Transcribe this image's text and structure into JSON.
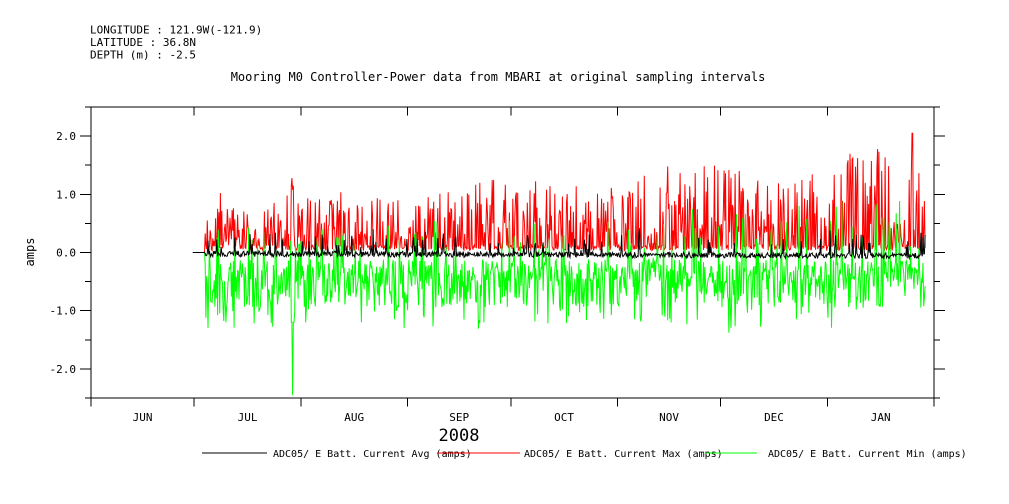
{
  "figure": {
    "header": {
      "longitude": "LONGITUDE : 121.9W(-121.9)",
      "latitude": "LATITUDE : 36.8N",
      "depth": "DEPTH (m) : -2.5"
    }
  },
  "chart_data": {
    "type": "line",
    "title": "Mooring M0 Controller-Power data from MBARI at original sampling intervals",
    "ylabel": "amps",
    "year_label": "2008",
    "background_color": "#ffffff",
    "axis_color": "#000000",
    "ylim": [
      -2.5,
      2.5
    ],
    "yticks": {
      "major": [
        {
          "value": 2.0,
          "label": "2.0"
        },
        {
          "value": 1.0,
          "label": "1.0"
        },
        {
          "value": 0.0,
          "label": "0.0"
        },
        {
          "value": -1.0,
          "label": "-1.0"
        },
        {
          "value": -2.0,
          "label": "-2.0"
        }
      ],
      "minor": [
        2.5,
        1.5,
        0.5,
        -0.5,
        -1.5,
        -2.5
      ]
    },
    "x_axis": {
      "months": [
        "JUN",
        "JUL",
        "AUG",
        "SEP",
        "OCT",
        "NOV",
        "DEC",
        "JAN"
      ],
      "month_days": [
        30,
        31,
        31,
        30,
        31,
        30,
        31,
        31
      ],
      "total_days": 245,
      "start": "2008-06-01",
      "end": "2009-02-01"
    },
    "series": [
      {
        "name": "ADC05/ E Batt. Current Avg (amps)",
        "color": "#000000",
        "kind": "avg"
      },
      {
        "name": "ADC05/ E Batt. Current Max (amps)",
        "color": "#ff0000",
        "kind": "max"
      },
      {
        "name": "ADC05/ E Batt. Current Min (amps)",
        "color": "#00ff00",
        "kind": "min"
      }
    ],
    "data_span": {
      "start_day": 29.6,
      "flat_zero_until_day": 33.2,
      "end_day": 242.4,
      "sample_step_days": 0.2
    },
    "envelopes": {
      "max": {
        "baseline_range": [
          0.03,
          0.13
        ],
        "peak_env_start": 0.85,
        "peak_env_end": 1.65,
        "highest_spike": {
          "day": 238.7,
          "value": 2.05
        },
        "july_burst": {
          "day": 58.6,
          "value": 1.3
        }
      },
      "min": {
        "dense_band": [
          -0.12,
          -0.5
        ],
        "deep_spike_range": [
          -0.5,
          -1.3
        ],
        "anomaly": {
          "day": 58.6,
          "value": -2.45
        },
        "up_spikes_to": 1.0
      },
      "avg": {
        "center_start": -0.02,
        "center_end": -0.055,
        "noise": 0.1,
        "up_blips_to": 0.45
      }
    },
    "quiet_zones_days": [
      [
        161.5,
        165.0
      ],
      [
        233.1,
        236.2
      ]
    ],
    "legend_position": "bottom",
    "grid": false
  }
}
